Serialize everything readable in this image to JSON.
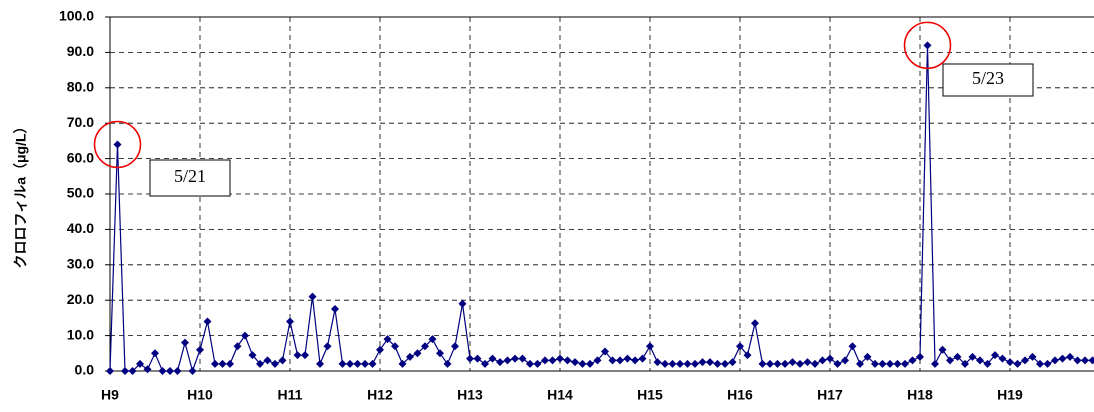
{
  "chart_data": {
    "type": "line",
    "y_label": "クロロフィルa（μg/L）",
    "categories": [
      "H9",
      null,
      null,
      null,
      null,
      null,
      null,
      null,
      null,
      null,
      null,
      null,
      "H10",
      null,
      null,
      null,
      null,
      null,
      null,
      null,
      null,
      null,
      null,
      null,
      "H11",
      null,
      null,
      null,
      null,
      null,
      null,
      null,
      null,
      null,
      null,
      null,
      "H12",
      null,
      null,
      null,
      null,
      null,
      null,
      null,
      null,
      null,
      null,
      null,
      "H13",
      null,
      null,
      null,
      null,
      null,
      null,
      null,
      null,
      null,
      null,
      null,
      "H14",
      null,
      null,
      null,
      null,
      null,
      null,
      null,
      null,
      null,
      null,
      null,
      "H15",
      null,
      null,
      null,
      null,
      null,
      null,
      null,
      null,
      null,
      null,
      null,
      "H16",
      null,
      null,
      null,
      null,
      null,
      null,
      null,
      null,
      null,
      null,
      null,
      "H17",
      null,
      null,
      null,
      null,
      null,
      null,
      null,
      null,
      null,
      null,
      null,
      "H18",
      null,
      null,
      null,
      null,
      null,
      null,
      null,
      null,
      null,
      null,
      null,
      "H19",
      null,
      null,
      null,
      null,
      null,
      null,
      null,
      null,
      null,
      null,
      null
    ],
    "values": [
      0,
      64,
      0,
      0,
      2,
      0.5,
      5,
      0,
      0,
      0,
      8,
      0,
      6,
      14,
      2,
      2,
      2,
      7,
      10,
      4.5,
      2,
      3,
      2,
      3,
      14,
      4.5,
      4.5,
      21,
      2,
      7,
      17.5,
      2,
      2,
      2,
      2,
      2,
      6,
      9,
      7,
      2,
      4,
      5,
      7,
      9,
      5,
      2,
      7,
      19,
      3.5,
      3.5,
      2,
      3.5,
      2.5,
      3,
      3.5,
      3.5,
      2,
      2,
      3,
      3,
      3.5,
      3,
      2.5,
      2,
      2,
      3,
      5.5,
      3,
      3,
      3.5,
      3,
      3.5,
      7,
      2.5,
      2,
      2,
      2,
      2,
      2,
      2.5,
      2.5,
      2,
      2,
      2.5,
      7,
      4.5,
      13.5,
      2,
      2,
      2,
      2,
      2.5,
      2,
      2.5,
      2,
      3,
      3.5,
      2,
      3,
      7,
      2,
      4,
      2,
      2,
      2,
      2,
      2,
      3,
      4,
      92,
      2,
      6,
      3,
      4,
      2,
      4,
      3,
      2,
      4.5,
      3.5,
      2.5,
      2,
      3,
      4,
      2,
      2,
      3,
      3.5,
      4,
      3,
      3,
      3
    ],
    "color": "#000080",
    "ylim": [
      0,
      100
    ],
    "yticks": [
      {
        "value": 0,
        "label": "0.0"
      },
      {
        "value": 10,
        "label": "10.0"
      },
      {
        "value": 20,
        "label": "20.0"
      },
      {
        "value": 30,
        "label": "30.0"
      },
      {
        "value": 40,
        "label": "40.0"
      },
      {
        "value": 50,
        "label": "50.0"
      },
      {
        "value": 60,
        "label": "60.0"
      },
      {
        "value": 70,
        "label": "70.0"
      },
      {
        "value": 80,
        "label": "80.0"
      },
      {
        "value": 90,
        "label": "90.0"
      },
      {
        "value": 100,
        "label": "100.0"
      }
    ],
    "grid": true,
    "annotations": [
      "5/21",
      "5/23"
    ]
  }
}
